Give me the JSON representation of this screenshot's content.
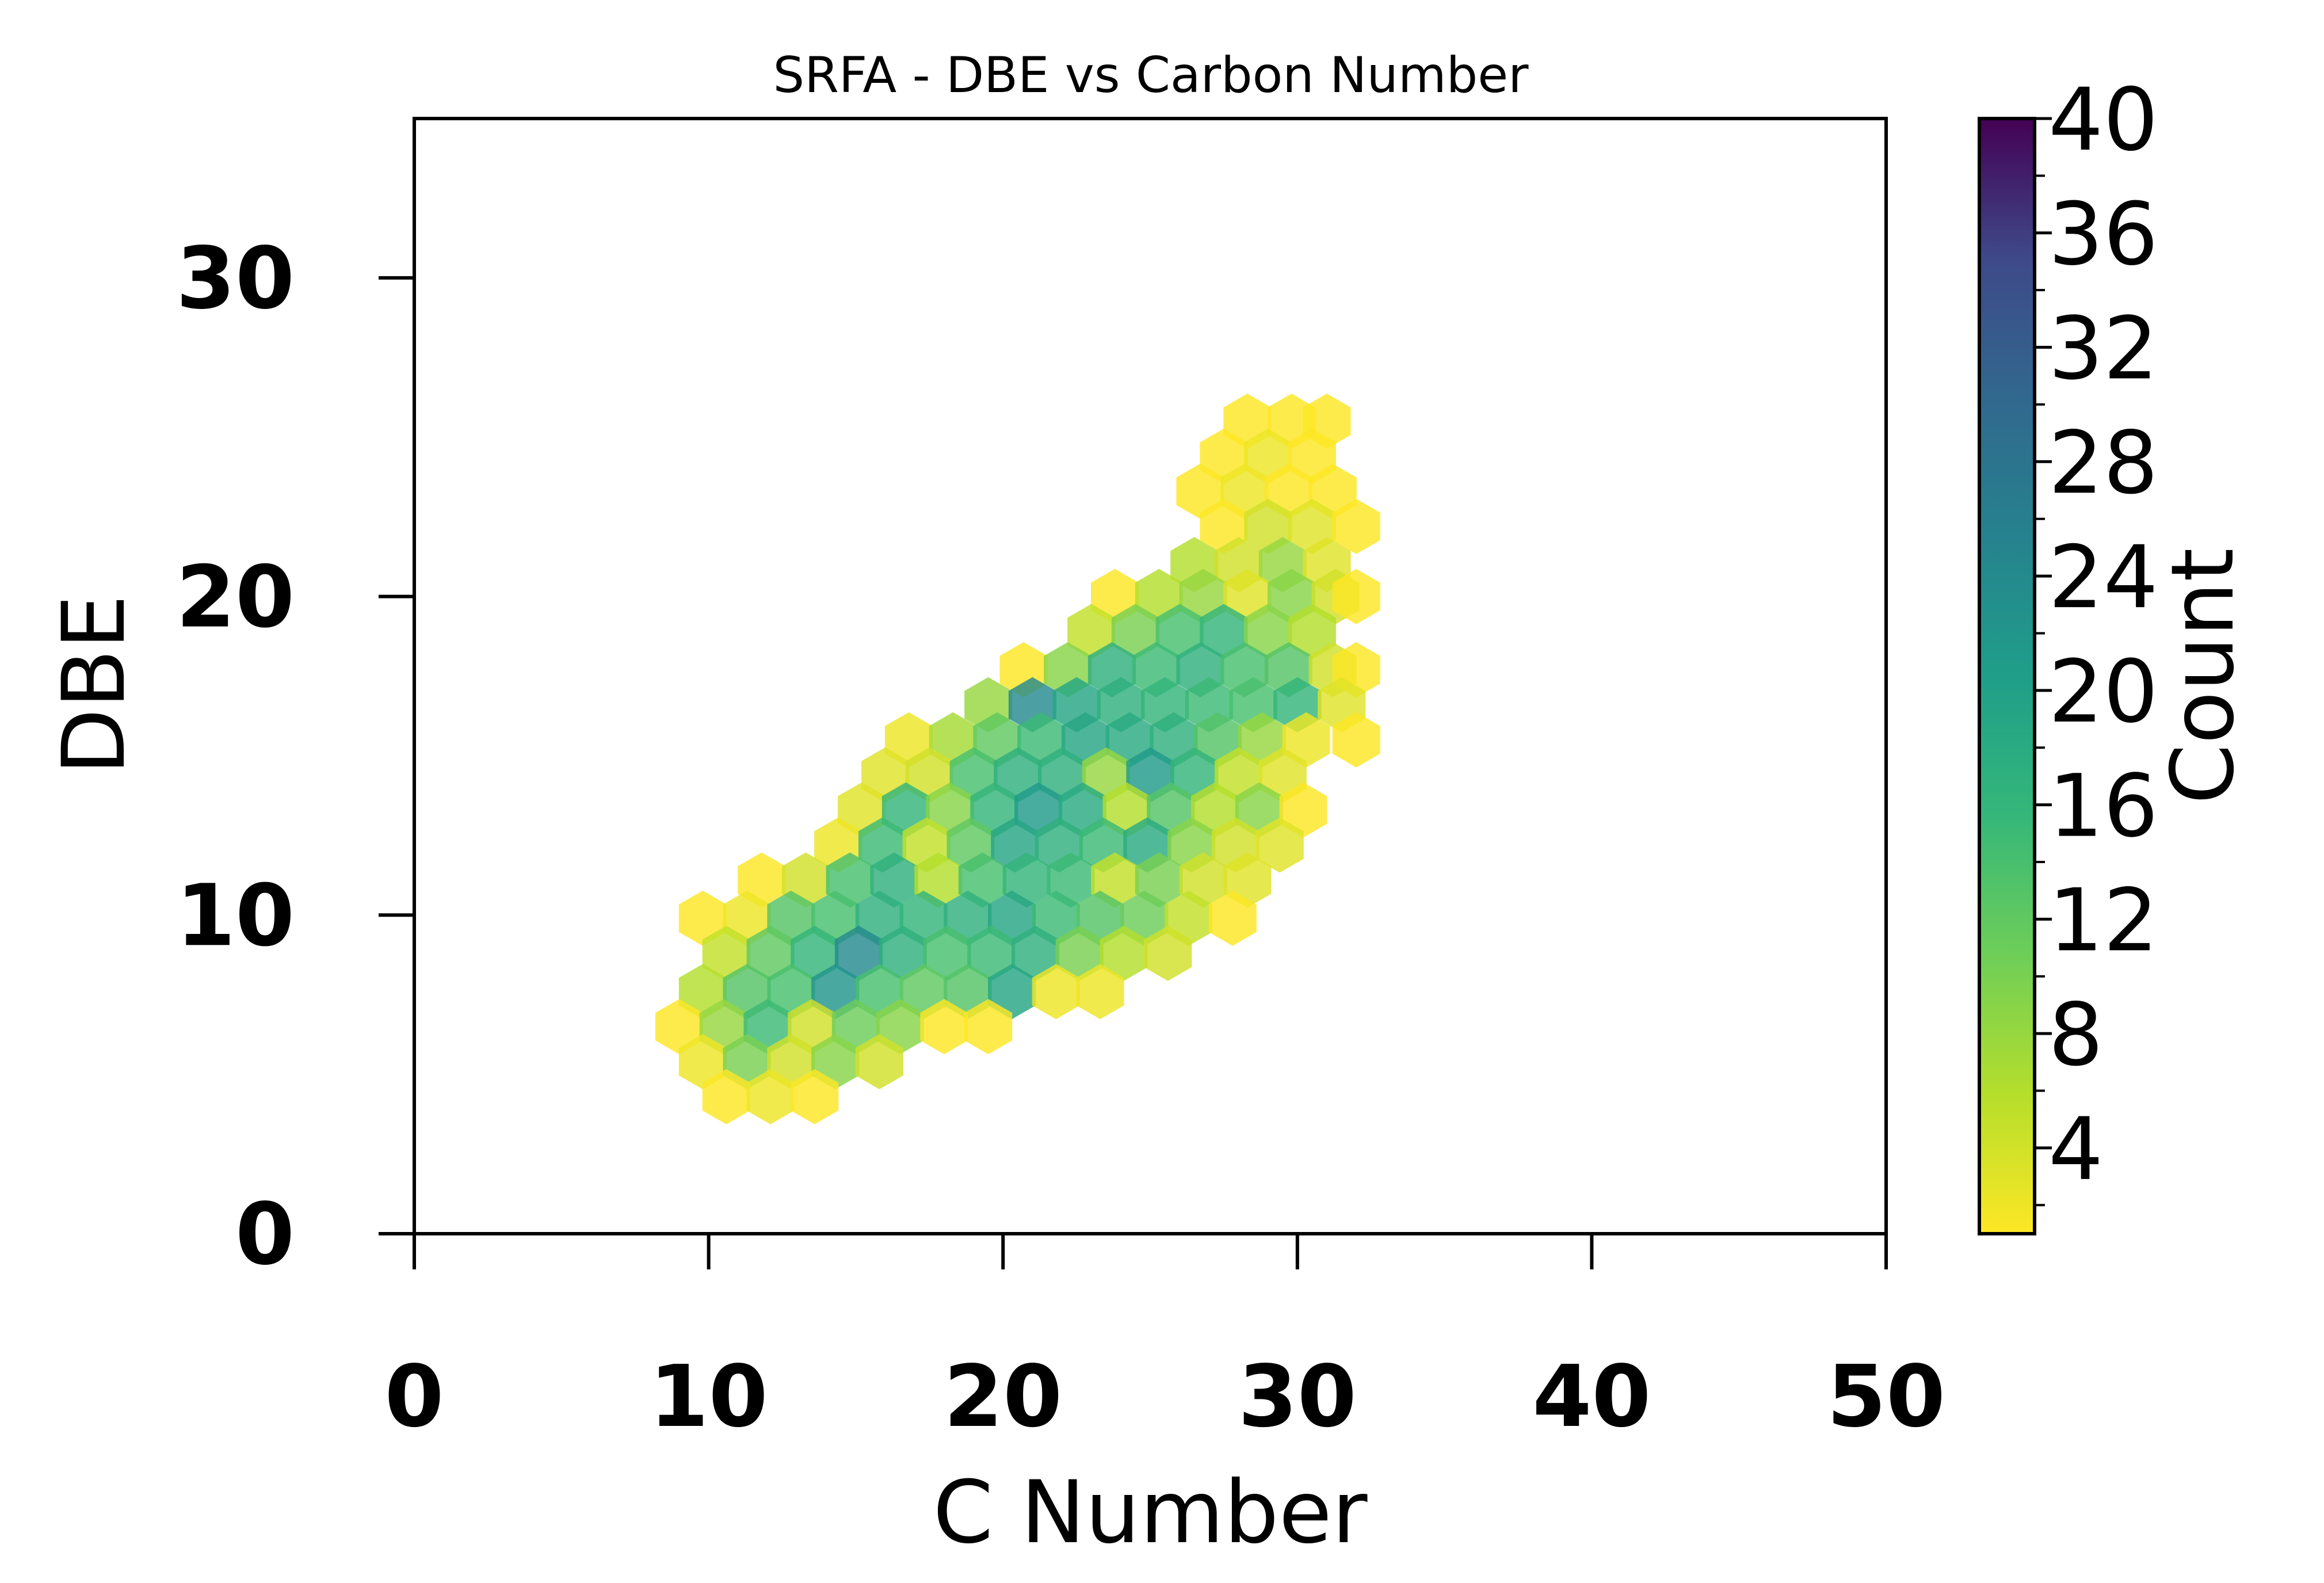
{
  "chart_data": {
    "type": "hexbin",
    "title": "SRFA - DBE vs Carbon Number",
    "xlabel": "C Number",
    "ylabel": "DBE",
    "xlim": [
      0,
      50
    ],
    "ylim": [
      0,
      35
    ],
    "xticks": [
      0,
      10,
      20,
      30,
      40,
      50
    ],
    "xtick_labels": [
      "0",
      "10",
      "20",
      "30",
      "40",
      "50"
    ],
    "yticks": [
      0,
      10,
      20,
      30
    ],
    "ytick_labels": [
      "0",
      "10",
      "20",
      "30"
    ],
    "grid": false,
    "colormap": "viridis_r",
    "colorbar": {
      "label": "Count",
      "range": [
        1,
        40
      ],
      "ticks": [
        4,
        8,
        12,
        16,
        20,
        24,
        28,
        32,
        36,
        40
      ],
      "tick_labels": [
        "4",
        "8",
        "12",
        "16",
        "20",
        "24",
        "28",
        "32",
        "36",
        "40"
      ]
    },
    "bins": [
      {
        "x": 28.3,
        "y": 25.5,
        "count": 1
      },
      {
        "x": 29.8,
        "y": 25.5,
        "count": 1
      },
      {
        "x": 31.0,
        "y": 25.5,
        "count": 1
      },
      {
        "x": 27.5,
        "y": 24.4,
        "count": 1
      },
      {
        "x": 29.0,
        "y": 24.4,
        "count": 2
      },
      {
        "x": 30.5,
        "y": 24.4,
        "count": 1
      },
      {
        "x": 26.7,
        "y": 23.3,
        "count": 1
      },
      {
        "x": 28.2,
        "y": 23.3,
        "count": 2
      },
      {
        "x": 29.7,
        "y": 23.3,
        "count": 1
      },
      {
        "x": 31.2,
        "y": 23.3,
        "count": 1
      },
      {
        "x": 27.5,
        "y": 22.2,
        "count": 1
      },
      {
        "x": 29.0,
        "y": 22.2,
        "count": 4
      },
      {
        "x": 30.5,
        "y": 22.2,
        "count": 3
      },
      {
        "x": 32.0,
        "y": 22.2,
        "count": 1
      },
      {
        "x": 26.5,
        "y": 21.0,
        "count": 6
      },
      {
        "x": 28.0,
        "y": 21.0,
        "count": 4
      },
      {
        "x": 29.5,
        "y": 21.0,
        "count": 8
      },
      {
        "x": 31.0,
        "y": 21.0,
        "count": 3
      },
      {
        "x": 23.8,
        "y": 20.0,
        "count": 1
      },
      {
        "x": 25.3,
        "y": 20.0,
        "count": 6
      },
      {
        "x": 26.8,
        "y": 20.0,
        "count": 8
      },
      {
        "x": 28.3,
        "y": 20.0,
        "count": 3
      },
      {
        "x": 29.8,
        "y": 20.0,
        "count": 9
      },
      {
        "x": 31.3,
        "y": 20.0,
        "count": 4
      },
      {
        "x": 32.0,
        "y": 20.0,
        "count": 1
      },
      {
        "x": 23.0,
        "y": 18.9,
        "count": 5
      },
      {
        "x": 24.5,
        "y": 18.9,
        "count": 10
      },
      {
        "x": 26.0,
        "y": 18.9,
        "count": 14
      },
      {
        "x": 27.5,
        "y": 18.9,
        "count": 16
      },
      {
        "x": 29.0,
        "y": 18.9,
        "count": 9
      },
      {
        "x": 30.5,
        "y": 18.9,
        "count": 6
      },
      {
        "x": 20.7,
        "y": 17.7,
        "count": 1
      },
      {
        "x": 22.2,
        "y": 17.7,
        "count": 9
      },
      {
        "x": 23.7,
        "y": 17.7,
        "count": 17
      },
      {
        "x": 25.2,
        "y": 17.7,
        "count": 15
      },
      {
        "x": 26.7,
        "y": 17.7,
        "count": 17
      },
      {
        "x": 28.2,
        "y": 17.7,
        "count": 14
      },
      {
        "x": 29.7,
        "y": 17.7,
        "count": 13
      },
      {
        "x": 31.2,
        "y": 17.7,
        "count": 4
      },
      {
        "x": 32.0,
        "y": 17.7,
        "count": 1
      },
      {
        "x": 19.5,
        "y": 16.6,
        "count": 8
      },
      {
        "x": 21.0,
        "y": 16.6,
        "count": 24
      },
      {
        "x": 22.5,
        "y": 16.6,
        "count": 19
      },
      {
        "x": 24.0,
        "y": 16.6,
        "count": 17
      },
      {
        "x": 25.5,
        "y": 16.6,
        "count": 16
      },
      {
        "x": 27.0,
        "y": 16.6,
        "count": 15
      },
      {
        "x": 28.5,
        "y": 16.6,
        "count": 14
      },
      {
        "x": 30.0,
        "y": 16.6,
        "count": 16
      },
      {
        "x": 31.5,
        "y": 16.6,
        "count": 3
      },
      {
        "x": 16.8,
        "y": 15.5,
        "count": 2
      },
      {
        "x": 18.3,
        "y": 15.5,
        "count": 7
      },
      {
        "x": 19.8,
        "y": 15.5,
        "count": 12
      },
      {
        "x": 21.3,
        "y": 15.5,
        "count": 15
      },
      {
        "x": 22.8,
        "y": 15.5,
        "count": 19
      },
      {
        "x": 24.3,
        "y": 15.5,
        "count": 18
      },
      {
        "x": 25.8,
        "y": 15.5,
        "count": 17
      },
      {
        "x": 27.3,
        "y": 15.5,
        "count": 13
      },
      {
        "x": 28.8,
        "y": 15.5,
        "count": 8
      },
      {
        "x": 30.3,
        "y": 15.5,
        "count": 2
      },
      {
        "x": 32.0,
        "y": 15.5,
        "count": 1
      },
      {
        "x": 16.0,
        "y": 14.4,
        "count": 3
      },
      {
        "x": 17.5,
        "y": 14.4,
        "count": 4
      },
      {
        "x": 19.0,
        "y": 14.4,
        "count": 14
      },
      {
        "x": 20.5,
        "y": 14.4,
        "count": 17
      },
      {
        "x": 22.0,
        "y": 14.4,
        "count": 17
      },
      {
        "x": 23.5,
        "y": 14.4,
        "count": 8
      },
      {
        "x": 25.0,
        "y": 14.4,
        "count": 21
      },
      {
        "x": 26.5,
        "y": 14.4,
        "count": 16
      },
      {
        "x": 28.0,
        "y": 14.4,
        "count": 5
      },
      {
        "x": 29.5,
        "y": 14.4,
        "count": 3
      },
      {
        "x": 15.2,
        "y": 13.3,
        "count": 3
      },
      {
        "x": 16.7,
        "y": 13.3,
        "count": 16
      },
      {
        "x": 18.2,
        "y": 13.3,
        "count": 9
      },
      {
        "x": 19.7,
        "y": 13.3,
        "count": 16
      },
      {
        "x": 21.2,
        "y": 13.3,
        "count": 21
      },
      {
        "x": 22.7,
        "y": 13.3,
        "count": 18
      },
      {
        "x": 24.2,
        "y": 13.3,
        "count": 6
      },
      {
        "x": 25.7,
        "y": 13.3,
        "count": 13
      },
      {
        "x": 27.2,
        "y": 13.3,
        "count": 6
      },
      {
        "x": 28.7,
        "y": 13.3,
        "count": 9
      },
      {
        "x": 30.2,
        "y": 13.3,
        "count": 1
      },
      {
        "x": 14.4,
        "y": 12.2,
        "count": 2
      },
      {
        "x": 15.9,
        "y": 12.2,
        "count": 15
      },
      {
        "x": 17.4,
        "y": 12.2,
        "count": 5
      },
      {
        "x": 18.9,
        "y": 12.2,
        "count": 12
      },
      {
        "x": 20.4,
        "y": 12.2,
        "count": 19
      },
      {
        "x": 21.9,
        "y": 12.2,
        "count": 17
      },
      {
        "x": 23.4,
        "y": 12.2,
        "count": 15
      },
      {
        "x": 24.9,
        "y": 12.2,
        "count": 18
      },
      {
        "x": 26.4,
        "y": 12.2,
        "count": 9
      },
      {
        "x": 27.9,
        "y": 12.2,
        "count": 4
      },
      {
        "x": 29.4,
        "y": 12.2,
        "count": 3
      },
      {
        "x": 11.8,
        "y": 11.1,
        "count": 1
      },
      {
        "x": 13.3,
        "y": 11.1,
        "count": 4
      },
      {
        "x": 14.8,
        "y": 11.1,
        "count": 14
      },
      {
        "x": 16.3,
        "y": 11.1,
        "count": 17
      },
      {
        "x": 17.8,
        "y": 11.1,
        "count": 6
      },
      {
        "x": 19.3,
        "y": 11.1,
        "count": 14
      },
      {
        "x": 20.8,
        "y": 11.1,
        "count": 16
      },
      {
        "x": 22.3,
        "y": 11.1,
        "count": 15
      },
      {
        "x": 23.8,
        "y": 11.1,
        "count": 5
      },
      {
        "x": 25.3,
        "y": 11.1,
        "count": 10
      },
      {
        "x": 26.8,
        "y": 11.1,
        "count": 4
      },
      {
        "x": 28.3,
        "y": 11.1,
        "count": 3
      },
      {
        "x": 9.8,
        "y": 9.9,
        "count": 1
      },
      {
        "x": 11.3,
        "y": 9.9,
        "count": 2
      },
      {
        "x": 12.8,
        "y": 9.9,
        "count": 13
      },
      {
        "x": 14.3,
        "y": 9.9,
        "count": 14
      },
      {
        "x": 15.8,
        "y": 9.9,
        "count": 17
      },
      {
        "x": 17.3,
        "y": 9.9,
        "count": 16
      },
      {
        "x": 18.8,
        "y": 9.9,
        "count": 17
      },
      {
        "x": 20.3,
        "y": 9.9,
        "count": 19
      },
      {
        "x": 21.8,
        "y": 9.9,
        "count": 15
      },
      {
        "x": 23.3,
        "y": 9.9,
        "count": 13
      },
      {
        "x": 24.8,
        "y": 9.9,
        "count": 11
      },
      {
        "x": 26.3,
        "y": 9.9,
        "count": 5
      },
      {
        "x": 27.8,
        "y": 9.9,
        "count": 1
      },
      {
        "x": 10.6,
        "y": 8.8,
        "count": 5
      },
      {
        "x": 12.1,
        "y": 8.8,
        "count": 12
      },
      {
        "x": 13.6,
        "y": 8.8,
        "count": 16
      },
      {
        "x": 15.1,
        "y": 8.8,
        "count": 24
      },
      {
        "x": 16.6,
        "y": 8.8,
        "count": 17
      },
      {
        "x": 18.1,
        "y": 8.8,
        "count": 14
      },
      {
        "x": 19.6,
        "y": 8.8,
        "count": 15
      },
      {
        "x": 21.1,
        "y": 8.8,
        "count": 17
      },
      {
        "x": 22.6,
        "y": 8.8,
        "count": 10
      },
      {
        "x": 24.1,
        "y": 8.8,
        "count": 6
      },
      {
        "x": 25.6,
        "y": 8.8,
        "count": 4
      },
      {
        "x": 9.8,
        "y": 7.6,
        "count": 6
      },
      {
        "x": 11.3,
        "y": 7.6,
        "count": 13
      },
      {
        "x": 12.8,
        "y": 7.6,
        "count": 14
      },
      {
        "x": 14.3,
        "y": 7.6,
        "count": 22
      },
      {
        "x": 15.8,
        "y": 7.6,
        "count": 14
      },
      {
        "x": 17.3,
        "y": 7.6,
        "count": 12
      },
      {
        "x": 18.8,
        "y": 7.6,
        "count": 13
      },
      {
        "x": 20.3,
        "y": 7.6,
        "count": 19
      },
      {
        "x": 21.8,
        "y": 7.6,
        "count": 2
      },
      {
        "x": 23.3,
        "y": 7.6,
        "count": 2
      },
      {
        "x": 9.0,
        "y": 6.5,
        "count": 1
      },
      {
        "x": 10.5,
        "y": 6.5,
        "count": 8
      },
      {
        "x": 12.0,
        "y": 6.5,
        "count": 15
      },
      {
        "x": 13.5,
        "y": 6.5,
        "count": 4
      },
      {
        "x": 15.0,
        "y": 6.5,
        "count": 11
      },
      {
        "x": 16.5,
        "y": 6.5,
        "count": 9
      },
      {
        "x": 18.0,
        "y": 6.5,
        "count": 1
      },
      {
        "x": 19.5,
        "y": 6.5,
        "count": 1
      },
      {
        "x": 9.8,
        "y": 5.4,
        "count": 2
      },
      {
        "x": 11.3,
        "y": 5.4,
        "count": 10
      },
      {
        "x": 12.8,
        "y": 5.4,
        "count": 4
      },
      {
        "x": 14.3,
        "y": 5.4,
        "count": 9
      },
      {
        "x": 15.8,
        "y": 5.4,
        "count": 4
      },
      {
        "x": 10.6,
        "y": 4.3,
        "count": 1
      },
      {
        "x": 12.1,
        "y": 4.3,
        "count": 2
      },
      {
        "x": 13.6,
        "y": 4.3,
        "count": 1
      }
    ]
  }
}
